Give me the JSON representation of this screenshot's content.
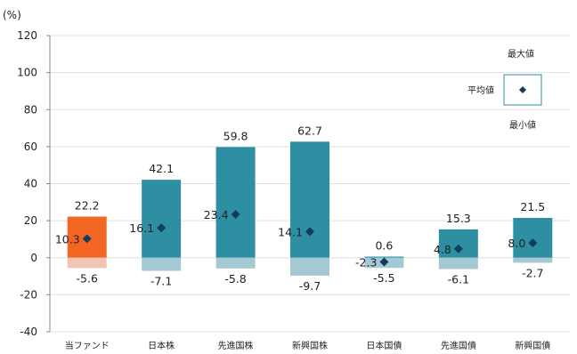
{
  "chart_data": {
    "type": "bar",
    "unit_label": "(%)",
    "categories": [
      "当ファンド",
      "日本株",
      "先進国株",
      "新興国株",
      "日本国債",
      "先進国債",
      "新興国債"
    ],
    "max": [
      22.2,
      42.1,
      59.8,
      62.7,
      0.6,
      15.3,
      21.5
    ],
    "min": [
      -5.6,
      -7.1,
      -5.8,
      -9.7,
      -5.5,
      -6.1,
      -2.7
    ],
    "avg": [
      10.3,
      16.1,
      23.4,
      14.1,
      -2.3,
      4.8,
      8.0
    ],
    "max_labels": [
      "22.2",
      "42.1",
      "59.8",
      "62.7",
      "0.6",
      "15.3",
      "21.5"
    ],
    "min_labels": [
      "-5.6",
      "-7.1",
      "-5.8",
      "-9.7",
      "-5.5",
      "-6.1",
      "-2.7"
    ],
    "avg_labels": [
      "10.3",
      "16.1",
      "23.4",
      "14.1",
      "-2.3",
      "4.8",
      "8.0"
    ],
    "ylim": [
      -40,
      120
    ],
    "yticks": [
      "120",
      "100",
      "80",
      "60",
      "40",
      "20",
      "0",
      "-20",
      "-40"
    ],
    "grid": true,
    "legend": {
      "position": "top-right",
      "max_label": "最大値",
      "avg_label": "平均値",
      "min_label": "最小値"
    },
    "colors": {
      "highlight": "#f26522",
      "bar": "#2e8fa3",
      "bar_below_zero": "#a5c9d2",
      "highlight_below_zero": "#f2c4b3",
      "marker": "#0f3d5c",
      "grid": "#e0e0e0"
    }
  }
}
